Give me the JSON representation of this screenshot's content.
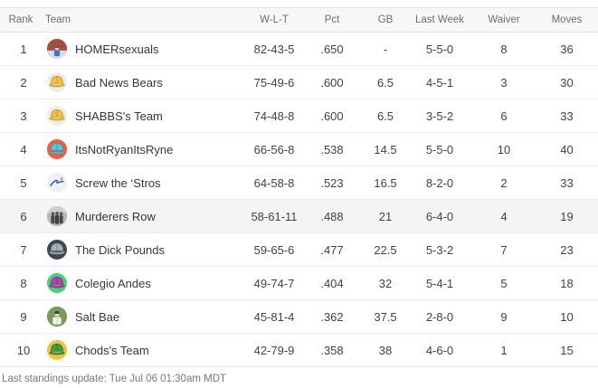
{
  "table": {
    "columns": [
      {
        "key": "rank",
        "label": "Rank"
      },
      {
        "key": "team",
        "label": "Team"
      },
      {
        "key": "wlt",
        "label": "W-L-T"
      },
      {
        "key": "pct",
        "label": "Pct"
      },
      {
        "key": "gb",
        "label": "GB"
      },
      {
        "key": "last_week",
        "label": "Last Week"
      },
      {
        "key": "waiver",
        "label": "Waiver"
      },
      {
        "key": "moves",
        "label": "Moves"
      }
    ],
    "rows": [
      {
        "rank": "1",
        "team": "HOMERsexuals",
        "wlt": "82-43-5",
        "pct": ".650",
        "gb": "-",
        "last_week": "5-5-0",
        "waiver": "8",
        "moves": "36",
        "highlighted": false,
        "avatar": {
          "kind": "photo-brick",
          "icon": "brick-wall-photo-avatar",
          "bg": "#a85140"
        }
      },
      {
        "rank": "2",
        "team": "Bad News Bears",
        "wlt": "75-49-6",
        "pct": ".600",
        "gb": "6.5",
        "last_week": "4-5-1",
        "waiver": "3",
        "moves": "30",
        "highlighted": false,
        "avatar": {
          "kind": "cap",
          "icon": "yellow-baseball-cap-avatar",
          "bg": "#ededed",
          "fg": "#f0bf3c",
          "stroke": "#c2922a"
        }
      },
      {
        "rank": "3",
        "team": "SHABBS's Team",
        "wlt": "74-48-8",
        "pct": ".600",
        "gb": "6.5",
        "last_week": "3-5-2",
        "waiver": "6",
        "moves": "33",
        "highlighted": false,
        "avatar": {
          "kind": "cap",
          "icon": "yellow-baseball-cap-avatar",
          "bg": "#ededed",
          "fg": "#f0bf3c",
          "stroke": "#c2922a"
        }
      },
      {
        "rank": "4",
        "team": "ItsNotRyanItsRyne",
        "wlt": "66-56-8",
        "pct": ".538",
        "gb": "14.5",
        "last_week": "5-5-0",
        "waiver": "10",
        "moves": "40",
        "highlighted": false,
        "avatar": {
          "kind": "cap",
          "icon": "teal-cap-red-avatar",
          "bg": "#f25b3f",
          "fg": "#52c8d2",
          "stroke": "#2c9aa6"
        }
      },
      {
        "rank": "5",
        "team": "Screw the ‘Stros",
        "wlt": "64-58-8",
        "pct": ".523",
        "gb": "16.5",
        "last_week": "8-2-0",
        "waiver": "2",
        "moves": "33",
        "highlighted": false,
        "avatar": {
          "kind": "logo-script",
          "icon": "dodgers-script-logo-avatar",
          "bg": "#eef0f4",
          "fg": "#3a6bc4",
          "accent": "#d94a3a"
        }
      },
      {
        "rank": "6",
        "team": "Murderers Row",
        "wlt": "58-61-11",
        "pct": ".488",
        "gb": "21",
        "last_week": "6-4-0",
        "waiver": "4",
        "moves": "19",
        "highlighted": true,
        "avatar": {
          "kind": "photo-group",
          "icon": "grayscale-group-photo-avatar",
          "bg": "#b7b7b7"
        }
      },
      {
        "rank": "7",
        "team": "The Dick Pounds",
        "wlt": "59-65-6",
        "pct": ".477",
        "gb": "22.5",
        "last_week": "5-3-2",
        "waiver": "7",
        "moves": "23",
        "highlighted": false,
        "avatar": {
          "kind": "cap",
          "icon": "gray-cap-dark-avatar",
          "bg": "#3f4850",
          "fg": "#a9b1b6",
          "stroke": "#7d858a"
        }
      },
      {
        "rank": "8",
        "team": "Colegio Andes",
        "wlt": "49-74-7",
        "pct": ".404",
        "gb": "32",
        "last_week": "5-4-1",
        "waiver": "5",
        "moves": "18",
        "highlighted": false,
        "avatar": {
          "kind": "cap",
          "icon": "magenta-cap-green-avatar",
          "bg": "#43d17c",
          "fg": "#c13bb0",
          "stroke": "#8e2583"
        }
      },
      {
        "rank": "9",
        "team": "Salt Bae",
        "wlt": "45-81-4",
        "pct": ".362",
        "gb": "37.5",
        "last_week": "2-8-0",
        "waiver": "9",
        "moves": "10",
        "highlighted": false,
        "avatar": {
          "kind": "photo-player",
          "icon": "baseball-player-photo-avatar",
          "bg": "#7a9a57"
        }
      },
      {
        "rank": "10",
        "team": "Chods's Team",
        "wlt": "42-79-9",
        "pct": ".358",
        "gb": "38",
        "last_week": "4-6-0",
        "waiver": "1",
        "moves": "15",
        "highlighted": false,
        "avatar": {
          "kind": "cap",
          "icon": "green-cap-yellow-avatar",
          "bg": "#f3c13a",
          "fg": "#3d9e4e",
          "stroke": "#2a7338"
        }
      }
    ]
  },
  "footer": {
    "last_update": "Last standings update: Tue Jul 06 01:30am MDT"
  },
  "colors": {
    "header_bg": "#f7f7f7",
    "border": "#e2e2e2",
    "row_separator": "#ececec",
    "highlight_row_bg": "#f4f4f4",
    "header_text": "#6a6f74",
    "cell_text": "#3e4347",
    "footer_text": "#75797e"
  }
}
